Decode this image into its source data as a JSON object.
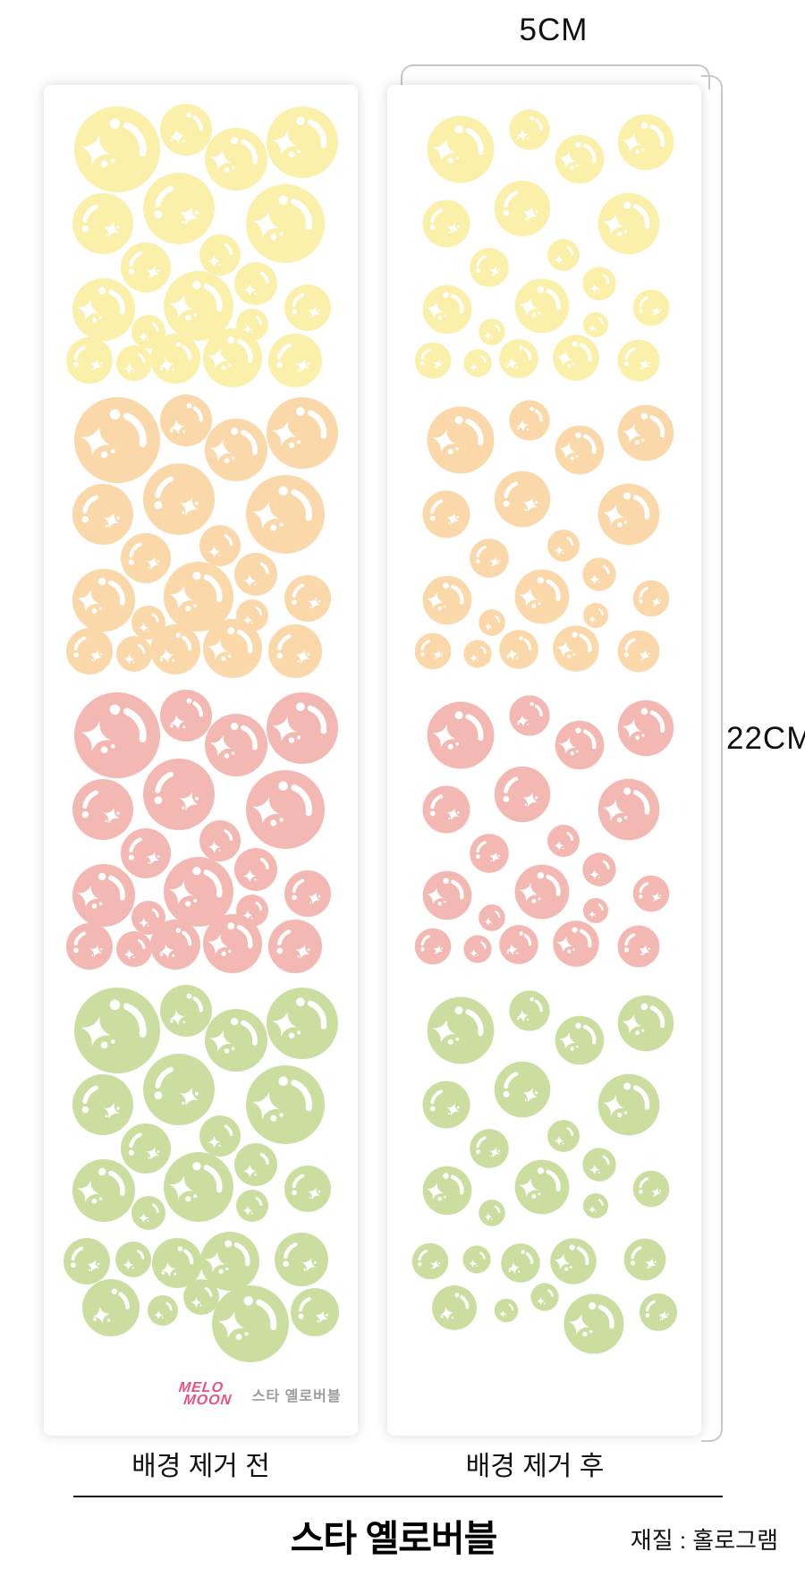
{
  "dimensions": {
    "width_label": "5CM",
    "height_label": "22CM"
  },
  "captions": {
    "before": "배경 제거 전",
    "after": "배경 제거 후"
  },
  "footer": {
    "title": "스타 옐로버블",
    "material": "재질 : 홀로그램"
  },
  "logo": {
    "line1": "MELO",
    "line2": "MOON",
    "subtitle": "스타 옐로버블",
    "color": "#e8537b",
    "subtitle_color": "#9c9c9c"
  },
  "sticker_sheet": {
    "colors": {
      "yellow": "#faf0aa",
      "peach": "#fad8aa",
      "pink": "#f4b8b2",
      "green": "#cbdea0"
    },
    "band_order": [
      "yellow",
      "peach",
      "pink",
      "green"
    ],
    "band_tops": [
      25,
      350,
      680,
      1010
    ],
    "right_radius_scale": 0.78,
    "band_pattern": [
      [
        82,
        47,
        48,
        "A"
      ],
      [
        159,
        25,
        29,
        "B"
      ],
      [
        215,
        58,
        35,
        "A"
      ],
      [
        289,
        39,
        40,
        "A"
      ],
      [
        66,
        130,
        34,
        "C"
      ],
      [
        151,
        113,
        40,
        "C"
      ],
      [
        270,
        130,
        44,
        "A"
      ],
      [
        114,
        179,
        28,
        "C"
      ],
      [
        197,
        165,
        23,
        "D"
      ],
      [
        237,
        197,
        24,
        "D"
      ],
      [
        67,
        226,
        35,
        "A"
      ],
      [
        117,
        251,
        19,
        "D"
      ],
      [
        173,
        222,
        39,
        "A"
      ],
      [
        233,
        243,
        18,
        "D"
      ],
      [
        295,
        224,
        26,
        "C"
      ],
      [
        51,
        283,
        26,
        "C"
      ],
      [
        101,
        286,
        20,
        "D"
      ],
      [
        147,
        281,
        28,
        "B"
      ],
      [
        211,
        280,
        33,
        "A"
      ],
      [
        281,
        283,
        30,
        "C"
      ]
    ],
    "green_pattern": [
      [
        82,
        47,
        48,
        "A"
      ],
      [
        159,
        25,
        29,
        "B"
      ],
      [
        215,
        58,
        35,
        "A"
      ],
      [
        289,
        39,
        40,
        "A"
      ],
      [
        66,
        130,
        34,
        "C"
      ],
      [
        151,
        113,
        40,
        "C"
      ],
      [
        270,
        130,
        44,
        "A"
      ],
      [
        114,
        179,
        28,
        "C"
      ],
      [
        197,
        165,
        23,
        "D"
      ],
      [
        237,
        197,
        24,
        "D"
      ],
      [
        67,
        226,
        35,
        "A"
      ],
      [
        117,
        251,
        19,
        "D"
      ],
      [
        173,
        222,
        39,
        "A"
      ],
      [
        233,
        243,
        18,
        "D"
      ],
      [
        295,
        224,
        26,
        "C"
      ],
      [
        48,
        305,
        26,
        "C"
      ],
      [
        100,
        303,
        20,
        "D"
      ],
      [
        149,
        307,
        28,
        "B"
      ],
      [
        208,
        305,
        33,
        "A"
      ],
      [
        288,
        303,
        30,
        "C"
      ],
      [
        75,
        357,
        32,
        "B"
      ],
      [
        133,
        360,
        17,
        "D"
      ],
      [
        176,
        345,
        20,
        "D"
      ],
      [
        231,
        375,
        43,
        "A"
      ],
      [
        303,
        362,
        27,
        "C"
      ]
    ],
    "variants": {
      "A": {
        "dot": [
          95,
          0.6,
          0.12
        ],
        "arc": [
          0.6,
          68,
          -8,
          0.16
        ],
        "star": [
          -0.5,
          0.02,
          0.36,
          15
        ],
        "mini": [
          [
            -0.3,
            0.34,
            0.08
          ],
          [
            -0.1,
            0.26,
            0.05
          ]
        ]
      },
      "B": {
        "dot": [
          78,
          0.58,
          0.1
        ],
        "arc": [
          0.58,
          55,
          2,
          0.15
        ],
        "star": [
          -0.34,
          0.26,
          0.3,
          -10
        ],
        "mini": [
          [
            -0.56,
            0.4,
            0.06
          ],
          [
            -0.08,
            0.44,
            0.05
          ]
        ]
      },
      "C": {
        "dot": [
          196,
          0.6,
          0.11
        ],
        "arc": [
          0.6,
          170,
          112,
          0.15
        ],
        "star": [
          0.28,
          0.2,
          0.28,
          20
        ],
        "mini": [
          [
            0.5,
            0.12,
            0.05
          ],
          [
            0.12,
            0.38,
            0.04
          ]
        ]
      },
      "D": {
        "dot": null,
        "arc": [
          0.55,
          60,
          8,
          0.15
        ],
        "star": [
          -0.28,
          0.3,
          0.3,
          0
        ],
        "mini": [
          [
            -0.02,
            0.47,
            0.05
          ]
        ]
      }
    }
  }
}
